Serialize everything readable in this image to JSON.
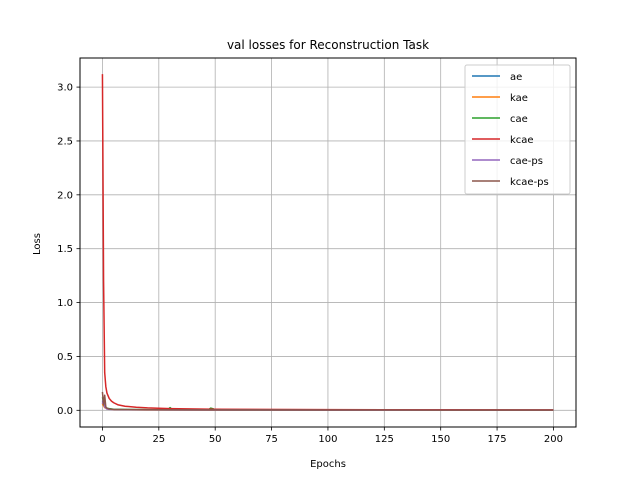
{
  "chart_data": {
    "type": "line",
    "title": "val losses for Reconstruction Task",
    "xlabel": "Epochs",
    "ylabel": "Loss",
    "xlim": [
      -9.95,
      210
    ],
    "ylim": [
      -0.155,
      3.27
    ],
    "xticks": [
      0,
      25,
      50,
      75,
      100,
      125,
      150,
      175,
      200
    ],
    "yticks": [
      0.0,
      0.5,
      1.0,
      1.5,
      2.0,
      2.5,
      3.0
    ],
    "ytick_labels": [
      "0.0",
      "0.5",
      "1.0",
      "1.5",
      "2.0",
      "2.5",
      "3.0"
    ],
    "grid": true,
    "legend_position": "top-right",
    "series": [
      {
        "name": "ae",
        "color": "#1f77b4",
        "x": [
          0,
          1,
          2,
          3,
          5,
          8,
          12,
          20,
          30,
          50,
          100,
          150,
          200
        ],
        "y": [
          0.09,
          0.03,
          0.018,
          0.012,
          0.009,
          0.007,
          0.006,
          0.005,
          0.004,
          0.003,
          0.002,
          0.002,
          0.002
        ]
      },
      {
        "name": "kae",
        "color": "#ff7f0e",
        "x": [
          0,
          1,
          2,
          3,
          5,
          8,
          12,
          20,
          30,
          50,
          100,
          150,
          200
        ],
        "y": [
          0.06,
          0.025,
          0.015,
          0.011,
          0.008,
          0.006,
          0.005,
          0.004,
          0.004,
          0.003,
          0.002,
          0.002,
          0.002
        ]
      },
      {
        "name": "cae",
        "color": "#2ca02c",
        "x": [
          0,
          1,
          2,
          3,
          5,
          10,
          20,
          29,
          30,
          31,
          40,
          47,
          48,
          49,
          50,
          60,
          100,
          150,
          200
        ],
        "y": [
          0.12,
          0.04,
          0.02,
          0.015,
          0.01,
          0.008,
          0.006,
          0.006,
          0.025,
          0.006,
          0.005,
          0.005,
          0.02,
          0.015,
          0.005,
          0.004,
          0.003,
          0.003,
          0.002
        ]
      },
      {
        "name": "kcae",
        "color": "#d62728",
        "x": [
          0,
          0.5,
          1,
          1.5,
          2,
          3,
          4,
          5,
          7,
          10,
          15,
          20,
          30,
          50,
          100,
          150,
          200
        ],
        "y": [
          3.12,
          1.2,
          0.35,
          0.22,
          0.16,
          0.11,
          0.085,
          0.07,
          0.05,
          0.038,
          0.028,
          0.022,
          0.015,
          0.01,
          0.006,
          0.005,
          0.004
        ]
      },
      {
        "name": "cae-ps",
        "color": "#9467bd",
        "x": [
          0,
          0.5,
          1,
          2,
          3,
          5,
          10,
          20,
          50,
          100,
          150,
          200
        ],
        "y": [
          0.06,
          0.11,
          0.03,
          0.012,
          0.009,
          0.007,
          0.005,
          0.004,
          0.003,
          0.002,
          0.002,
          0.002
        ]
      },
      {
        "name": "kcae-ps",
        "color": "#8c564b",
        "x": [
          0,
          0.5,
          1,
          1.5,
          2,
          3,
          5,
          10,
          20,
          50,
          100,
          150,
          200
        ],
        "y": [
          0.17,
          0.05,
          0.14,
          0.03,
          0.02,
          0.012,
          0.008,
          0.006,
          0.005,
          0.004,
          0.003,
          0.002,
          0.002
        ]
      }
    ]
  }
}
